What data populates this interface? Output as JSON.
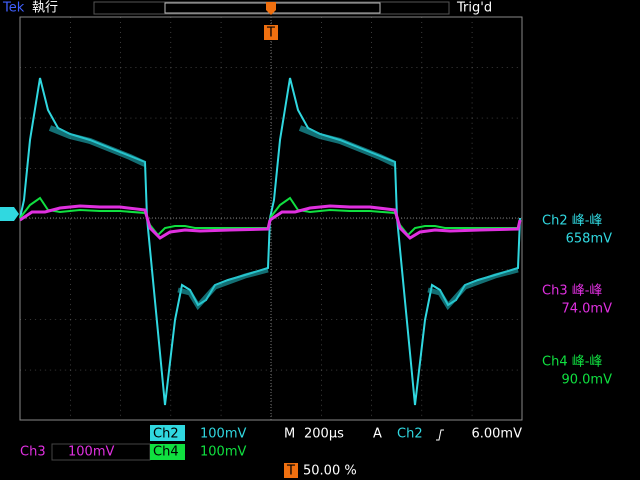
{
  "header": {
    "brand": "Tek",
    "mode": "執行",
    "trigger_status": "Trig'd",
    "trigger_marker": "T"
  },
  "channel_marker": "2",
  "measurements": [
    {
      "label": "Ch2 峰-峰",
      "value": "658mV"
    },
    {
      "label": "Ch3 峰-峰",
      "value": "74.0mV"
    },
    {
      "label": "Ch4 峰-峰",
      "value": "90.0mV"
    }
  ],
  "footer": {
    "ch2": {
      "name": "Ch2",
      "scale": "100mV"
    },
    "timebase": {
      "label": "M",
      "value": "200µs"
    },
    "trigger": {
      "label": "A",
      "source": "Ch2",
      "level": "6.00mV"
    },
    "ch3": {
      "name": "Ch3",
      "scale": "100mV"
    },
    "ch4": {
      "name": "Ch4",
      "scale": "100mV"
    },
    "position": {
      "icon": "T",
      "value": "50.00 %"
    }
  }
}
